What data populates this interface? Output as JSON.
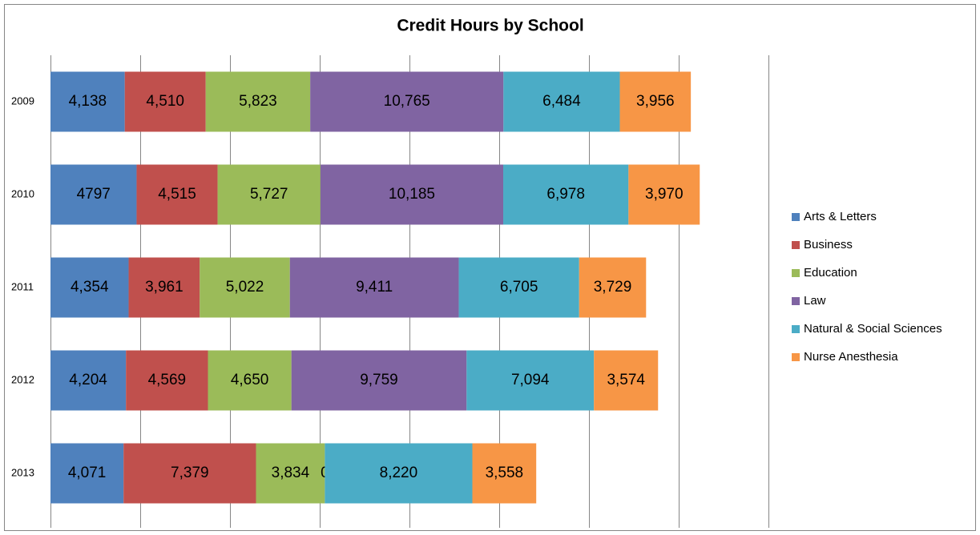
{
  "chart_data": {
    "type": "stacked-bar-horizontal",
    "title": "Credit Hours by School",
    "categories": [
      "2009",
      "2010",
      "2011",
      "2012",
      "2013"
    ],
    "series": [
      {
        "name": "Arts & Letters",
        "color": "#4f81bd",
        "values": [
          4138,
          4797,
          4354,
          4204,
          4071
        ],
        "value_labels": [
          "4,138",
          "4797",
          "4,354",
          "4,204",
          "4,071"
        ]
      },
      {
        "name": "Business",
        "color": "#c0504d",
        "values": [
          4510,
          4515,
          3961,
          4569,
          7379
        ],
        "value_labels": [
          "4,510",
          "4,515",
          "3,961",
          "4,569",
          "7,379"
        ]
      },
      {
        "name": "Education",
        "color": "#9bbb59",
        "values": [
          5823,
          5727,
          5022,
          4650,
          3834
        ],
        "value_labels": [
          "5,823",
          "5,727",
          "5,022",
          "4,650",
          "3,834"
        ]
      },
      {
        "name": "Law",
        "color": "#8064a2",
        "values": [
          10765,
          10185,
          9411,
          9759,
          0
        ],
        "value_labels": [
          "10,765",
          "10,185",
          "9,411",
          "9,759",
          "0"
        ]
      },
      {
        "name": "Natural & Social Sciences",
        "color": "#4bacc6",
        "values": [
          6484,
          6978,
          6705,
          7094,
          8220
        ],
        "value_labels": [
          "6,484",
          "6,978",
          "6,705",
          "7,094",
          "8,220"
        ]
      },
      {
        "name": "Nurse Anesthesia",
        "color": "#f79646",
        "values": [
          3956,
          3970,
          3729,
          3574,
          3558
        ],
        "value_labels": [
          "3,956",
          "3,970",
          "3,729",
          "3,574",
          "3,558"
        ]
      }
    ],
    "xlim": [
      0,
      40000
    ],
    "xticks": [
      0,
      5000,
      10000,
      15000,
      20000,
      25000,
      30000,
      35000,
      40000
    ],
    "grid": true,
    "legend": "right"
  }
}
